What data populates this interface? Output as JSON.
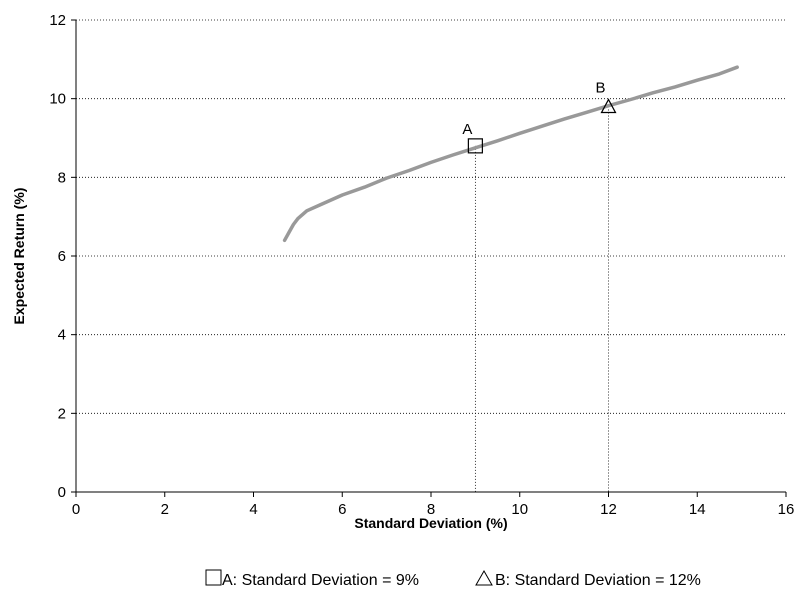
{
  "chart_data": {
    "type": "line",
    "xlabel": "Standard Deviation (%)",
    "ylabel": "Expected Return (%)",
    "xlim": [
      0,
      16
    ],
    "ylim": [
      0,
      12
    ],
    "x_ticks": [
      "0",
      "2",
      "4",
      "6",
      "8",
      "10",
      "12",
      "14",
      "16"
    ],
    "y_ticks": [
      "0",
      "2",
      "4",
      "6",
      "8",
      "10",
      "12"
    ],
    "grid": "horizontal dotted",
    "series": [
      {
        "color": "#999999",
        "x": [
          4.7,
          4.8,
          4.9,
          5.0,
          5.2,
          5.5,
          6.0,
          6.5,
          7.0,
          7.5,
          8.0,
          8.5,
          9.0,
          9.5,
          10.0,
          10.5,
          11.0,
          11.5,
          12.0,
          12.5,
          13.0,
          13.5,
          14.0,
          14.5,
          14.9
        ],
        "y": [
          6.4,
          6.6,
          6.8,
          6.95,
          7.15,
          7.3,
          7.55,
          7.75,
          7.98,
          8.17,
          8.38,
          8.57,
          8.75,
          8.93,
          9.12,
          9.3,
          9.48,
          9.65,
          9.82,
          9.98,
          10.15,
          10.3,
          10.47,
          10.63,
          10.8
        ]
      }
    ],
    "points": [
      {
        "label": "A",
        "marker": "square",
        "x": 9,
        "y": 8.8
      },
      {
        "label": "B",
        "marker": "triangle",
        "x": 12,
        "y": 9.8
      }
    ],
    "legend": {
      "position": "bottom",
      "items": [
        {
          "marker": "square",
          "text": "A: Standard Deviation = 9%"
        },
        {
          "marker": "triangle",
          "text": "B: Standard Deviation = 12%"
        }
      ]
    }
  }
}
